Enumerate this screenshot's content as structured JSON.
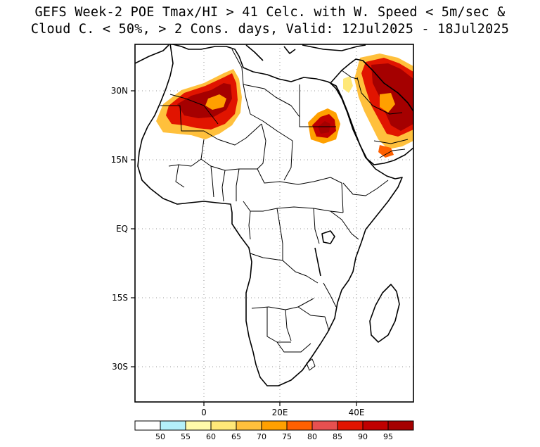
{
  "title": {
    "line1": "GEFS Week-2 POE Tmax/HI > 41 Celc. with W. Speed < 5m/sec &",
    "line2": "Cloud C. < 50%, > 2 Cons. days, Valid: 12Jul2025 - 18Jul2025"
  },
  "axes": {
    "lat_labels": [
      "30N",
      "15N",
      "EQ",
      "15S",
      "30S"
    ],
    "lon_labels": [
      "0",
      "20E",
      "40E"
    ]
  },
  "colorbar": {
    "labels": [
      "50",
      "55",
      "60",
      "65",
      "70",
      "75",
      "80",
      "85",
      "90",
      "95"
    ],
    "colors": [
      "#ffffff",
      "#b4f0fa",
      "#fffaaa",
      "#ffe878",
      "#ffc03c",
      "#ffa000",
      "#ff6000",
      "#e65050",
      "#e11400",
      "#c00000",
      "#a50000"
    ]
  },
  "map": {
    "land_color": "#ffffff",
    "border_color": "#000000",
    "grid": "dotted"
  }
}
